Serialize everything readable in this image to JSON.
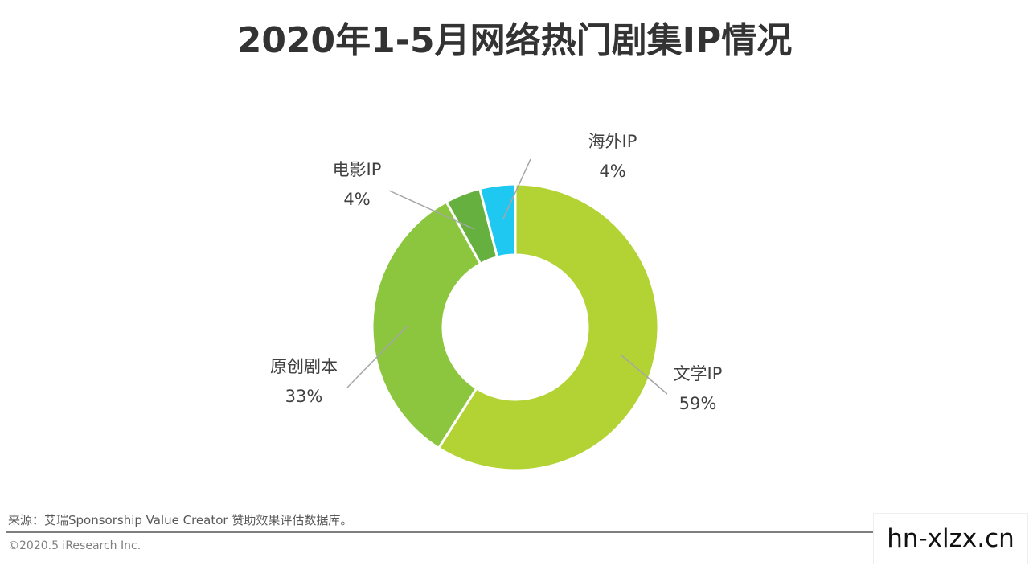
{
  "title": "2020年1-5月网络热门剧集IP情况",
  "chart_data": {
    "type": "pie",
    "style": "donut",
    "title": "2020年1-5月网络热门剧集IP情况",
    "slices": [
      {
        "label": "文学IP",
        "value": 59,
        "display": "59%",
        "color": "#b3d335"
      },
      {
        "label": "原创剧本",
        "value": 33,
        "display": "33%",
        "color": "#8cc63f"
      },
      {
        "label": "电影IP",
        "value": 4,
        "display": "4%",
        "color": "#66b040"
      },
      {
        "label": "海外IP",
        "value": 4,
        "display": "4%",
        "color": "#1fc8f0"
      }
    ],
    "legend": "none"
  },
  "footer": {
    "source": "来源：艾瑞Sponsorship Value Creator 赞助效果评估数据库。",
    "copyright": "©2020.5 iResearch Inc."
  },
  "watermark": "hn-xlzx.cn"
}
